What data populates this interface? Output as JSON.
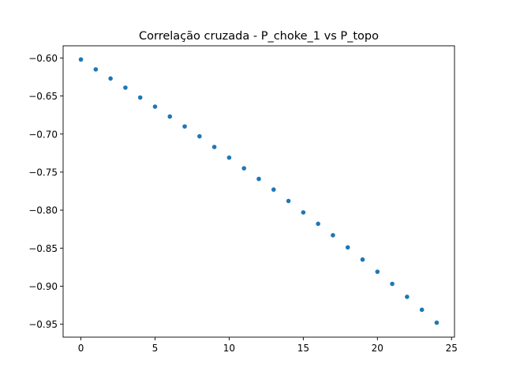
{
  "chart_data": {
    "type": "scatter",
    "title": "Correlação cruzada - P_choke_1 vs P_topo",
    "xlabel": "",
    "ylabel": "",
    "xlim": [
      -1.2,
      25.2
    ],
    "ylim": [
      -0.967,
      -0.584
    ],
    "x_ticks": [
      0,
      5,
      10,
      15,
      20,
      25
    ],
    "y_ticks": [
      -0.6,
      -0.65,
      -0.7,
      -0.75,
      -0.8,
      -0.85,
      -0.9,
      -0.95
    ],
    "x_tick_labels": [
      "0",
      "5",
      "10",
      "15",
      "20",
      "25"
    ],
    "y_tick_labels": [
      "−0.60",
      "−0.65",
      "−0.70",
      "−0.75",
      "−0.80",
      "−0.85",
      "−0.90",
      "−0.95"
    ],
    "grid": false,
    "legend": false,
    "marker_color": "#1f77b4",
    "x": [
      0,
      1,
      2,
      3,
      4,
      5,
      6,
      7,
      8,
      9,
      10,
      11,
      12,
      13,
      14,
      15,
      16,
      17,
      18,
      19,
      20,
      21,
      22,
      23,
      24
    ],
    "y": [
      -0.602,
      -0.615,
      -0.627,
      -0.639,
      -0.652,
      -0.664,
      -0.677,
      -0.69,
      -0.703,
      -0.717,
      -0.731,
      -0.745,
      -0.759,
      -0.773,
      -0.788,
      -0.803,
      -0.818,
      -0.833,
      -0.849,
      -0.865,
      -0.881,
      -0.897,
      -0.914,
      -0.931,
      -0.948
    ]
  }
}
